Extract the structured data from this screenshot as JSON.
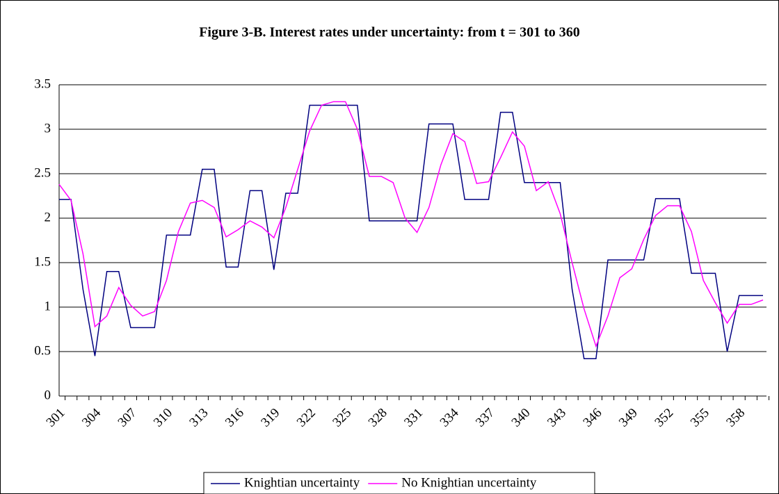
{
  "chart_data": {
    "type": "line",
    "title": "Figure 3-B.  Interest rates under uncertainty: from t = 301 to 360",
    "categories": [
      "301",
      null,
      null,
      "304",
      null,
      null,
      "307",
      null,
      null,
      "310",
      null,
      null,
      "313",
      null,
      null,
      "316",
      null,
      null,
      "319",
      null,
      null,
      "322",
      null,
      null,
      "325",
      null,
      null,
      "328",
      null,
      null,
      "331",
      null,
      null,
      "334",
      null,
      null,
      "337",
      null,
      null,
      "340",
      null,
      null,
      "343",
      null,
      null,
      "346",
      null,
      null,
      "349",
      null,
      null,
      "352",
      null,
      null,
      "355",
      null,
      null,
      "358",
      null,
      null
    ],
    "series": [
      {
        "name": "Knightian uncertainty",
        "color": "#000080",
        "values": [
          2.21,
          2.21,
          1.2,
          0.45,
          1.4,
          1.4,
          0.77,
          0.77,
          0.77,
          1.81,
          1.81,
          1.81,
          2.55,
          2.55,
          1.45,
          1.45,
          2.31,
          2.31,
          1.42,
          2.28,
          2.28,
          3.27,
          3.27,
          3.27,
          3.27,
          3.27,
          1.97,
          1.97,
          1.97,
          1.97,
          1.97,
          3.06,
          3.06,
          3.06,
          2.21,
          2.21,
          2.21,
          3.19,
          3.19,
          2.4,
          2.4,
          2.4,
          2.4,
          1.2,
          0.42,
          0.42,
          1.53,
          1.53,
          1.53,
          1.53,
          2.22,
          2.22,
          2.22,
          1.38,
          1.38,
          1.38,
          0.5,
          1.13,
          1.13,
          1.13
        ]
      },
      {
        "name": "No Knightian uncertainty",
        "color": "#ff00ff",
        "values": [
          2.38,
          2.2,
          1.6,
          0.78,
          0.9,
          1.22,
          1.02,
          0.9,
          0.95,
          1.3,
          1.85,
          2.17,
          2.2,
          2.12,
          1.79,
          1.87,
          1.97,
          1.9,
          1.78,
          2.12,
          2.55,
          2.98,
          3.27,
          3.31,
          3.31,
          3.0,
          2.47,
          2.47,
          2.4,
          2.0,
          1.84,
          2.12,
          2.6,
          2.95,
          2.86,
          2.39,
          2.41,
          2.68,
          2.97,
          2.81,
          2.31,
          2.41,
          2.05,
          1.5,
          0.98,
          0.56,
          0.9,
          1.33,
          1.43,
          1.76,
          2.03,
          2.14,
          2.14,
          1.85,
          1.3,
          1.05,
          0.82,
          1.03,
          1.03,
          1.08
        ]
      }
    ],
    "ylim": [
      0,
      3.5
    ],
    "yticks": [
      0,
      0.5,
      1,
      1.5,
      2,
      2.5,
      3,
      3.5
    ],
    "grid": true,
    "legend": "bottom"
  }
}
